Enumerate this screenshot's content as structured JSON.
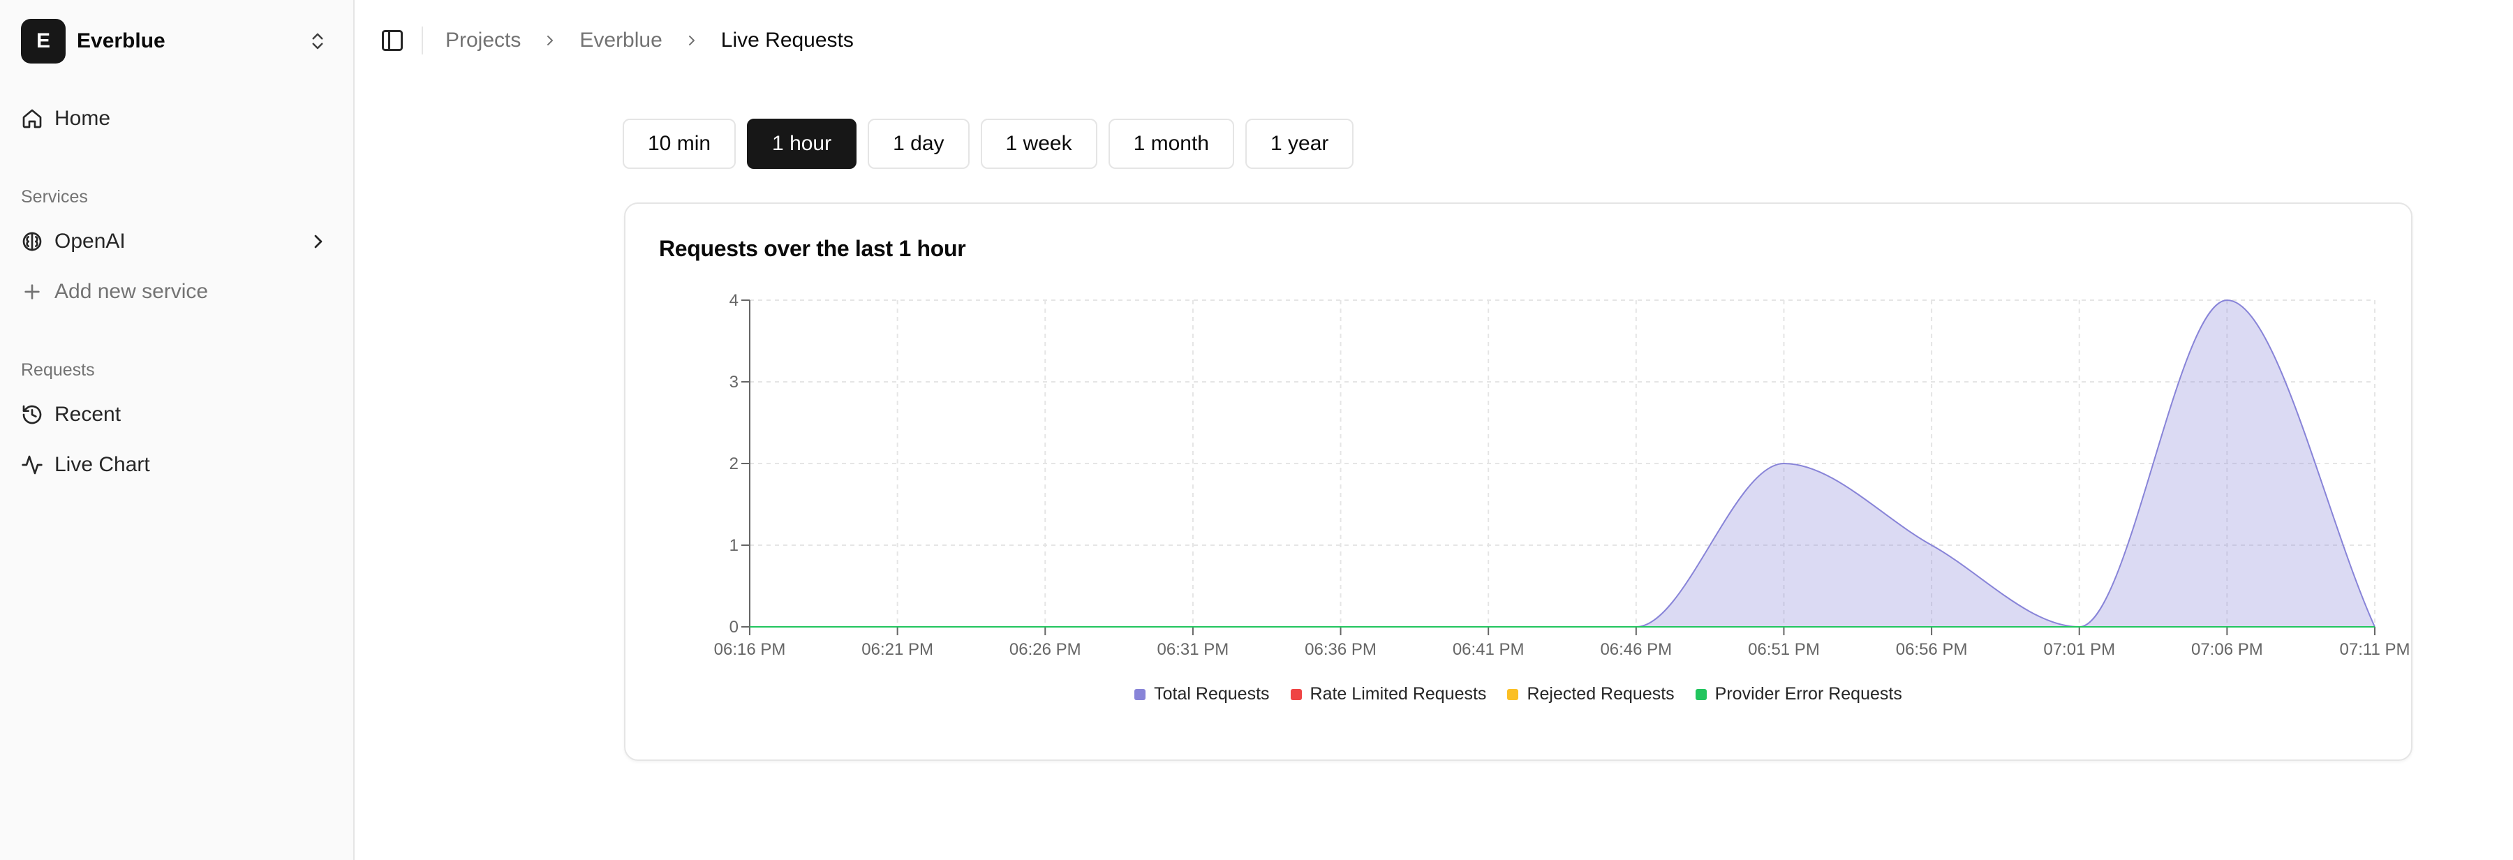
{
  "sidebar": {
    "project": {
      "initial": "E",
      "name": "Everblue"
    },
    "home": "Home",
    "services_label": "Services",
    "services": [
      {
        "label": "OpenAI",
        "icon": "brain-icon"
      },
      {
        "label": "Add new service",
        "icon": "plus-icon"
      }
    ],
    "requests_label": "Requests",
    "requests": [
      {
        "label": "Recent",
        "icon": "history-icon"
      },
      {
        "label": "Live Chart",
        "icon": "activity-icon"
      }
    ]
  },
  "breadcrumb": {
    "items": [
      "Projects",
      "Everblue",
      "Live Requests"
    ]
  },
  "ranges": {
    "items": [
      "10 min",
      "1 hour",
      "1 day",
      "1 week",
      "1 month",
      "1 year"
    ],
    "active": "1 hour"
  },
  "chart_card": {
    "title": "Requests over the last 1 hour"
  },
  "chart_data": {
    "type": "area",
    "title": "Requests over the last 1 hour",
    "x_ticks": [
      "06:16 PM",
      "06:21 PM",
      "06:26 PM",
      "06:31 PM",
      "06:36 PM",
      "06:41 PM",
      "06:46 PM",
      "06:51 PM",
      "06:56 PM",
      "07:01 PM",
      "07:06 PM",
      "07:11 PM"
    ],
    "ylim": [
      0,
      4
    ],
    "y_ticks": [
      0,
      1,
      2,
      3,
      4
    ],
    "grid": true,
    "legend_position": "bottom",
    "series": [
      {
        "name": "Total Requests",
        "color": "#8884d8",
        "values": [
          0,
          0,
          0,
          0,
          0,
          0,
          0,
          2,
          1,
          0,
          4,
          0
        ]
      },
      {
        "name": "Rate Limited Requests",
        "color": "#ef4444",
        "values": [
          0,
          0,
          0,
          0,
          0,
          0,
          0,
          0,
          0,
          0,
          0,
          0
        ]
      },
      {
        "name": "Rejected Requests",
        "color": "#fbbf24",
        "values": [
          0,
          0,
          0,
          0,
          0,
          0,
          0,
          0,
          0,
          0,
          0,
          0
        ]
      },
      {
        "name": "Provider Error Requests",
        "color": "#22c55e",
        "values": [
          0,
          0,
          0,
          0,
          0,
          0,
          0,
          0,
          0,
          0,
          0,
          0
        ]
      }
    ]
  }
}
